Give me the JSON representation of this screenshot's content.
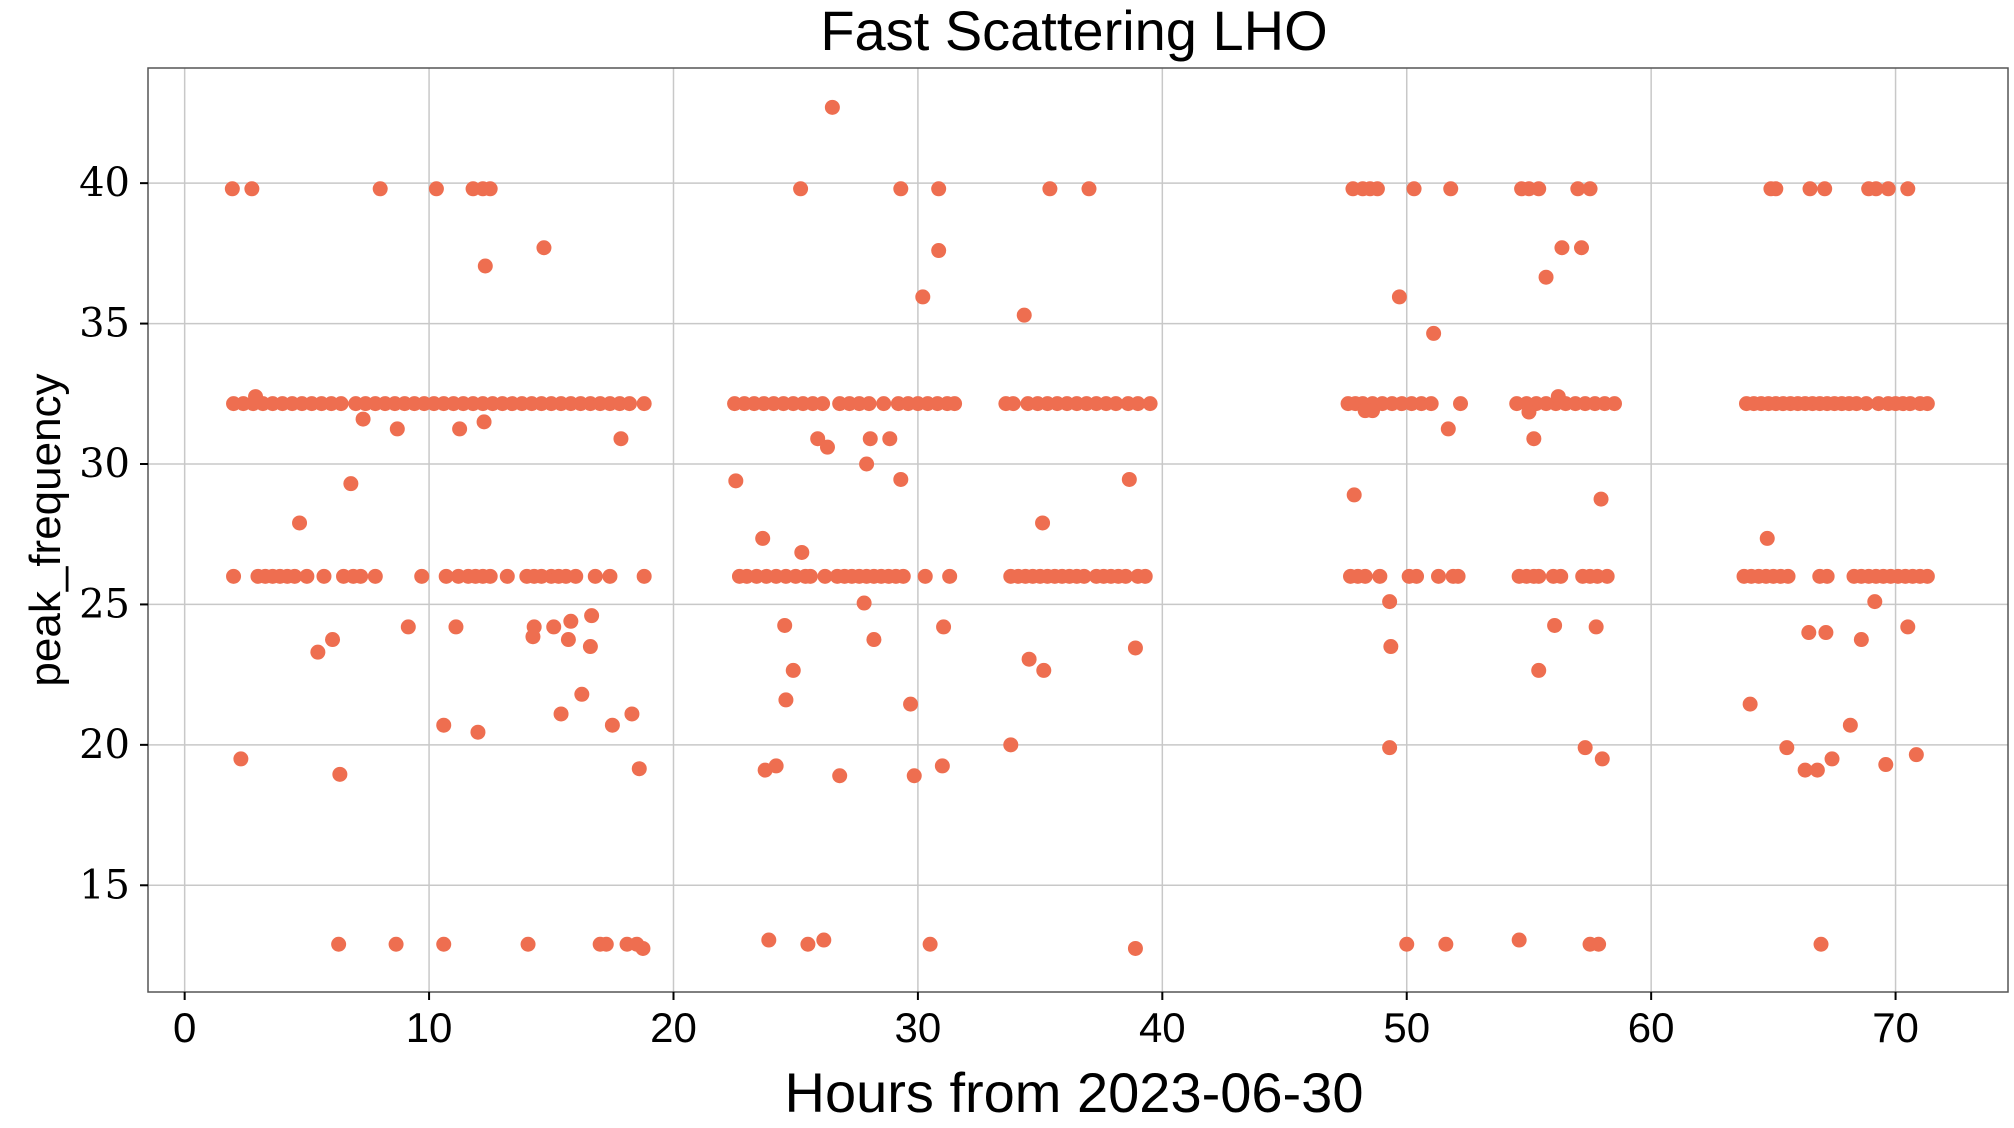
{
  "chart_data": {
    "type": "scatter",
    "title": "Fast Scattering LHO",
    "xlabel": "Hours from 2023-06-30",
    "ylabel": "peak_frequency",
    "xlim": [
      -1.5,
      74.6
    ],
    "ylim": [
      11.2,
      44.1
    ],
    "xticks": [
      0,
      10,
      20,
      30,
      40,
      50,
      60,
      70
    ],
    "yticks": [
      15,
      20,
      25,
      30,
      35,
      40
    ],
    "grid": true,
    "marker_color": "#EE6E50",
    "bands": [
      {
        "y": 32.15,
        "x": [
          2.0,
          2.4,
          2.8,
          3.2,
          3.6,
          4.0,
          4.4,
          4.8,
          5.2,
          5.6,
          6.0,
          6.4,
          7.0,
          7.4,
          7.8,
          8.2,
          8.6,
          9.0,
          9.4,
          9.8,
          10.2,
          10.6,
          11.0,
          11.4,
          11.8,
          12.2,
          12.6,
          13.0,
          13.4,
          13.8,
          14.2,
          14.6,
          15.0,
          15.4,
          15.8,
          16.2,
          16.6,
          17.0,
          17.4,
          17.8,
          18.2,
          18.8,
          22.5,
          22.9,
          23.3,
          23.7,
          24.1,
          24.5,
          24.9,
          25.3,
          25.7,
          26.1,
          26.8,
          27.2,
          27.6,
          28.0,
          28.6,
          29.2,
          29.6,
          30.0,
          30.4,
          30.8,
          31.2,
          31.5,
          33.6,
          33.9,
          34.5,
          34.9,
          35.3,
          35.7,
          36.1,
          36.5,
          36.9,
          37.3,
          37.7,
          38.1,
          38.6,
          39.0,
          39.5,
          47.6,
          47.9,
          48.2,
          48.6,
          49.0,
          49.4,
          49.8,
          50.2,
          50.6,
          51.0,
          52.2,
          54.5,
          54.9,
          55.3,
          55.7,
          56.1,
          56.5,
          56.9,
          57.3,
          57.7,
          58.1,
          58.5,
          63.9,
          64.2,
          64.5,
          64.8,
          65.1,
          65.4,
          65.7,
          66.0,
          66.3,
          66.6,
          66.9,
          67.2,
          67.5,
          67.8,
          68.1,
          68.4,
          68.8,
          69.3,
          69.7,
          70.0,
          70.3,
          70.6,
          71.0,
          71.3
        ]
      },
      {
        "y": 26.0,
        "x": [
          2.0,
          3.0,
          3.3,
          3.6,
          3.9,
          4.2,
          4.5,
          5.0,
          5.7,
          6.5,
          6.9,
          7.2,
          7.8,
          9.7,
          10.7,
          11.2,
          11.6,
          11.9,
          12.2,
          12.5,
          13.2,
          14.0,
          14.3,
          14.6,
          15.0,
          15.3,
          15.6,
          16.0,
          16.8,
          17.4,
          18.8,
          22.7,
          23.0,
          23.4,
          23.8,
          24.2,
          24.6,
          25.0,
          25.4,
          25.6,
          26.2,
          26.7,
          27.0,
          27.3,
          27.6,
          27.9,
          28.2,
          28.5,
          28.8,
          29.1,
          29.4,
          30.3,
          31.3,
          33.8,
          34.1,
          34.4,
          34.7,
          35.0,
          35.3,
          35.6,
          35.9,
          36.2,
          36.5,
          36.8,
          37.3,
          37.6,
          37.9,
          38.2,
          38.5,
          39.0,
          39.3,
          47.7,
          48.0,
          48.3,
          48.9,
          50.1,
          50.4,
          51.3,
          51.9,
          52.1,
          54.6,
          54.9,
          55.2,
          55.4,
          56.0,
          56.3,
          57.2,
          57.5,
          57.8,
          58.2,
          63.8,
          64.1,
          64.4,
          64.7,
          65.0,
          65.3,
          65.6,
          66.9,
          67.2,
          68.3,
          68.6,
          68.9,
          69.2,
          69.5,
          69.8,
          70.1,
          70.4,
          70.7,
          71.0,
          71.3
        ]
      },
      {
        "y": 39.8,
        "x": [
          1.95,
          2.75,
          8.0,
          10.3,
          11.8,
          12.2,
          12.5,
          25.2,
          29.3,
          30.85,
          35.4,
          37.0,
          47.8,
          48.2,
          48.5,
          48.8,
          50.3,
          51.8,
          54.7,
          55.0,
          55.4,
          57.0,
          57.5,
          64.9,
          65.1,
          66.5,
          67.1,
          68.9,
          69.2,
          69.7,
          70.5
        ]
      },
      {
        "y": 12.9,
        "x": [
          6.3,
          8.65,
          10.6,
          14.05,
          17.0,
          17.25,
          18.1,
          18.5,
          25.5,
          30.5,
          50.0,
          51.6,
          57.5,
          57.85,
          66.95
        ]
      }
    ],
    "points": [
      [
        14.7,
        37.7
      ],
      [
        12.3,
        37.05
      ],
      [
        2.9,
        32.4
      ],
      [
        7.3,
        31.6
      ],
      [
        8.7,
        31.25
      ],
      [
        11.25,
        31.25
      ],
      [
        12.25,
        31.5
      ],
      [
        17.85,
        30.9
      ],
      [
        6.8,
        29.3
      ],
      [
        4.7,
        27.9
      ],
      [
        5.45,
        23.3
      ],
      [
        6.05,
        23.75
      ],
      [
        9.15,
        24.2
      ],
      [
        11.1,
        24.2
      ],
      [
        14.25,
        23.85
      ],
      [
        14.3,
        24.2
      ],
      [
        15.1,
        24.2
      ],
      [
        15.7,
        23.75
      ],
      [
        15.8,
        24.4
      ],
      [
        16.6,
        23.5
      ],
      [
        16.65,
        24.6
      ],
      [
        2.3,
        19.5
      ],
      [
        6.35,
        18.95
      ],
      [
        10.6,
        20.7
      ],
      [
        12.0,
        20.45
      ],
      [
        15.4,
        21.1
      ],
      [
        16.25,
        21.8
      ],
      [
        17.5,
        20.7
      ],
      [
        18.3,
        21.1
      ],
      [
        18.6,
        19.15
      ],
      [
        18.75,
        12.75
      ],
      [
        26.5,
        42.7
      ],
      [
        30.85,
        37.6
      ],
      [
        30.2,
        35.95
      ],
      [
        25.9,
        30.9
      ],
      [
        26.3,
        30.6
      ],
      [
        28.05,
        30.9
      ],
      [
        28.85,
        30.9
      ],
      [
        27.9,
        30.0
      ],
      [
        29.3,
        29.45
      ],
      [
        22.55,
        29.4
      ],
      [
        23.65,
        27.35
      ],
      [
        25.25,
        26.85
      ],
      [
        27.8,
        25.05
      ],
      [
        24.55,
        24.25
      ],
      [
        24.9,
        22.65
      ],
      [
        28.2,
        23.75
      ],
      [
        31.05,
        24.2
      ],
      [
        24.6,
        21.6
      ],
      [
        29.7,
        21.45
      ],
      [
        23.75,
        19.1
      ],
      [
        24.2,
        19.25
      ],
      [
        26.8,
        18.9
      ],
      [
        29.85,
        18.9
      ],
      [
        31.0,
        19.25
      ],
      [
        23.9,
        13.05
      ],
      [
        26.15,
        13.05
      ],
      [
        34.35,
        35.3
      ],
      [
        35.1,
        27.9
      ],
      [
        34.55,
        23.05
      ],
      [
        35.15,
        22.65
      ],
      [
        33.8,
        20.0
      ],
      [
        38.65,
        29.45
      ],
      [
        38.9,
        23.45
      ],
      [
        38.9,
        12.75
      ],
      [
        49.7,
        35.95
      ],
      [
        51.1,
        34.65
      ],
      [
        51.7,
        31.25
      ],
      [
        48.3,
        31.9
      ],
      [
        48.6,
        31.9
      ],
      [
        47.85,
        28.9
      ],
      [
        49.3,
        25.1
      ],
      [
        49.35,
        23.5
      ],
      [
        49.3,
        19.9
      ],
      [
        56.35,
        37.7
      ],
      [
        57.15,
        37.7
      ],
      [
        55.7,
        36.65
      ],
      [
        56.2,
        32.4
      ],
      [
        55.0,
        31.85
      ],
      [
        55.2,
        30.9
      ],
      [
        57.95,
        28.75
      ],
      [
        56.05,
        24.25
      ],
      [
        57.75,
        24.2
      ],
      [
        55.4,
        22.65
      ],
      [
        57.3,
        19.9
      ],
      [
        58.0,
        19.5
      ],
      [
        54.6,
        13.05
      ],
      [
        64.75,
        27.35
      ],
      [
        69.15,
        25.1
      ],
      [
        66.45,
        24.0
      ],
      [
        67.15,
        24.0
      ],
      [
        68.6,
        23.75
      ],
      [
        70.5,
        24.2
      ],
      [
        64.05,
        21.45
      ],
      [
        68.15,
        20.7
      ],
      [
        65.55,
        19.9
      ],
      [
        66.3,
        19.1
      ],
      [
        66.8,
        19.1
      ],
      [
        67.4,
        19.5
      ],
      [
        69.6,
        19.3
      ],
      [
        70.85,
        19.65
      ]
    ]
  }
}
